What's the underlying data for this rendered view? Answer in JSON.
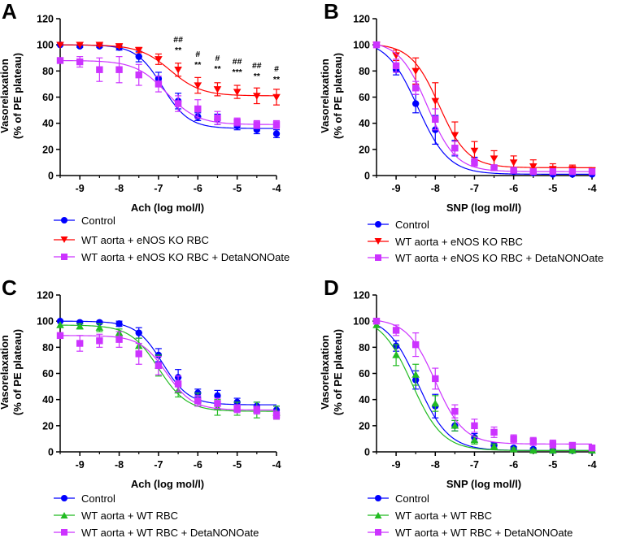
{
  "panels": [
    {
      "letter": "A",
      "xlabel": "Ach (log mol/l)",
      "ylabel": "Vasorelaxation",
      "ylabel2": "(% of PE plateau)",
      "legend": [
        "Control",
        "WT aorta + eNOS KO RBC",
        "WT aorta + eNOS KO RBC + DetaNONOate"
      ]
    },
    {
      "letter": "B",
      "xlabel": "SNP (log mol/l)",
      "ylabel": "Vasorelaxation",
      "ylabel2": "(% of PE plateau)",
      "legend": [
        "Control",
        "WT aorta + eNOS KO RBC",
        "WT aorta + eNOS KO RBC + DetaNONOate"
      ]
    },
    {
      "letter": "C",
      "xlabel": "Ach (log mol/l)",
      "ylabel": "Vasorelaxation",
      "ylabel2": "(% of PE plateau)",
      "legend": [
        "Control",
        "WT aorta + WT RBC",
        "WT aorta + WT RBC + DetaNONOate"
      ]
    },
    {
      "letter": "D",
      "xlabel": "SNP (log mol/l)",
      "ylabel": "Vasorelaxation",
      "ylabel2": "(% of PE plateau)",
      "legend": [
        "Control",
        "WT aorta + WT RBC",
        "WT aorta + WT RBC + DetaNONOate"
      ]
    }
  ],
  "chart_data": [
    {
      "panel": "A",
      "type": "scatter",
      "title": "",
      "xlabel": "Ach (log mol/l)",
      "ylabel": "Vasorelaxation (% of PE plateau)",
      "xlim": [
        -9.5,
        -4
      ],
      "ylim": [
        0,
        120
      ],
      "xticks": [
        -9,
        -8,
        -7,
        -6,
        -5,
        -4
      ],
      "yticks": [
        0,
        20,
        40,
        60,
        80,
        100,
        120
      ],
      "series": [
        {
          "name": "Control",
          "color": "#0000ff",
          "marker": "circle",
          "x": [
            -9.5,
            -9,
            -8.5,
            -8,
            -7.5,
            -7,
            -6.5,
            -6,
            -5.5,
            -5,
            -4.5,
            -4
          ],
          "y": [
            100,
            99,
            99,
            98,
            91,
            74,
            57,
            45,
            43,
            38,
            35,
            32
          ],
          "err": [
            0,
            1,
            1,
            2,
            4,
            5,
            6,
            3,
            4,
            3,
            3,
            3
          ],
          "fit": {
            "bottom": 36,
            "top": 100,
            "ec50": -6.9,
            "hill": 1.3
          }
        },
        {
          "name": "WT aorta + eNOS KO RBC",
          "color": "#ff0000",
          "marker": "triangle-down",
          "x": [
            -9.5,
            -9,
            -8.5,
            -8,
            -7.5,
            -7,
            -6.5,
            -6,
            -5.5,
            -5,
            -4.5,
            -4
          ],
          "y": [
            100,
            100,
            100,
            99,
            96,
            89,
            81,
            69,
            66,
            64,
            61,
            60
          ],
          "err": [
            0,
            0,
            1,
            1,
            2,
            4,
            5,
            6,
            5,
            5,
            6,
            6
          ],
          "fit": {
            "bottom": 61,
            "top": 100,
            "ec50": -6.7,
            "hill": 1.1
          }
        },
        {
          "name": "WT aorta + eNOS KO RBC + DetaNONOate",
          "color": "#cc33ff",
          "marker": "square",
          "x": [
            -9.5,
            -9,
            -8.5,
            -8,
            -7.5,
            -7,
            -6.5,
            -6,
            -5.5,
            -5,
            -4.5,
            -4
          ],
          "y": [
            88,
            87,
            81,
            81,
            77,
            70,
            55,
            51,
            44,
            41,
            39,
            39
          ],
          "err": [
            0,
            4,
            9,
            10,
            8,
            6,
            6,
            7,
            5,
            3,
            3,
            3
          ],
          "fit": {
            "bottom": 39,
            "top": 88,
            "ec50": -6.8,
            "hill": 1.1
          }
        }
      ],
      "annotations": [
        {
          "x": -6.5,
          "lines": [
            "##",
            "**"
          ]
        },
        {
          "x": -6,
          "lines": [
            "#",
            "**"
          ]
        },
        {
          "x": -5.5,
          "lines": [
            "#",
            "**"
          ]
        },
        {
          "x": -5,
          "lines": [
            "##",
            "***"
          ]
        },
        {
          "x": -4.5,
          "lines": [
            "##",
            "**"
          ]
        },
        {
          "x": -4,
          "lines": [
            "#",
            "**"
          ]
        }
      ]
    },
    {
      "panel": "B",
      "type": "scatter",
      "title": "",
      "xlabel": "SNP (log mol/l)",
      "ylabel": "Vasorelaxation (% of PE plateau)",
      "xlim": [
        -9.5,
        -4
      ],
      "ylim": [
        0,
        120
      ],
      "xticks": [
        -9,
        -8,
        -7,
        -6,
        -5,
        -4
      ],
      "yticks": [
        0,
        20,
        40,
        60,
        80,
        100,
        120
      ],
      "series": [
        {
          "name": "Control",
          "color": "#0000ff",
          "marker": "circle",
          "x": [
            -9.5,
            -9,
            -8.5,
            -8,
            -7.5,
            -7,
            -6.5,
            -6,
            -5.5,
            -5,
            -4.5,
            -4
          ],
          "y": [
            100,
            81,
            55,
            35,
            21,
            11,
            6,
            3,
            2,
            1,
            1,
            1
          ],
          "err": [
            0,
            4,
            7,
            11,
            6,
            3,
            2,
            1,
            1,
            1,
            1,
            1
          ],
          "fit": {
            "bottom": 1,
            "top": 104,
            "ec50": -8.45,
            "hill": 1.1
          }
        },
        {
          "name": "WT aorta + eNOS KO RBC",
          "color": "#ff0000",
          "marker": "triangle-down",
          "x": [
            -9.5,
            -9,
            -8.5,
            -8,
            -7.5,
            -7,
            -6.5,
            -6,
            -5.5,
            -5,
            -4.5,
            -4
          ],
          "y": [
            100,
            92,
            80,
            57,
            31,
            19,
            13,
            10,
            7,
            5,
            5,
            4
          ],
          "err": [
            0,
            4,
            10,
            14,
            10,
            7,
            6,
            5,
            5,
            4,
            3,
            2
          ],
          "fit": {
            "bottom": 6,
            "top": 101,
            "ec50": -7.9,
            "hill": 1.2
          }
        },
        {
          "name": "WT aorta + eNOS KO RBC + DetaNONOate",
          "color": "#cc33ff",
          "marker": "square",
          "x": [
            -9.5,
            -9,
            -8.5,
            -8,
            -7.5,
            -7,
            -6.5,
            -6,
            -5.5,
            -5,
            -4.5,
            -4
          ],
          "y": [
            100,
            84,
            67,
            43,
            21,
            10,
            6,
            4,
            3,
            3,
            3,
            3
          ],
          "err": [
            0,
            5,
            5,
            8,
            5,
            3,
            2,
            2,
            1,
            1,
            1,
            1
          ],
          "fit": {
            "bottom": 3,
            "top": 103,
            "ec50": -8.2,
            "hill": 1.2
          }
        }
      ]
    },
    {
      "panel": "C",
      "type": "scatter",
      "title": "",
      "xlabel": "Ach (log mol/l)",
      "ylabel": "Vasorelaxation (% of PE plateau)",
      "xlim": [
        -9.5,
        -4
      ],
      "ylim": [
        0,
        120
      ],
      "xticks": [
        -9,
        -8,
        -7,
        -6,
        -5,
        -4
      ],
      "yticks": [
        0,
        20,
        40,
        60,
        80,
        100,
        120
      ],
      "series": [
        {
          "name": "Control",
          "color": "#0000ff",
          "marker": "circle",
          "x": [
            -9.5,
            -9,
            -8.5,
            -8,
            -7.5,
            -7,
            -6.5,
            -6,
            -5.5,
            -5,
            -4.5,
            -4
          ],
          "y": [
            100,
            99,
            99,
            98,
            91,
            74,
            57,
            45,
            43,
            38,
            35,
            32
          ],
          "err": [
            0,
            1,
            1,
            2,
            4,
            5,
            6,
            3,
            4,
            3,
            3,
            3
          ],
          "fit": {
            "bottom": 36,
            "top": 100,
            "ec50": -6.9,
            "hill": 1.3
          }
        },
        {
          "name": "WT aorta + WT RBC",
          "color": "#22bb22",
          "marker": "triangle-up",
          "x": [
            -9.5,
            -9,
            -8.5,
            -8,
            -7.5,
            -7,
            -6.5,
            -6,
            -5.5,
            -5,
            -4.5,
            -4
          ],
          "y": [
            97,
            96,
            95,
            91,
            81,
            66,
            47,
            40,
            34,
            33,
            32,
            30
          ],
          "err": [
            0,
            2,
            3,
            3,
            6,
            8,
            5,
            5,
            6,
            5,
            6,
            5
          ],
          "fit": {
            "bottom": 31,
            "top": 97,
            "ec50": -7.0,
            "hill": 1.2
          }
        },
        {
          "name": "WT aorta + WT RBC + DetaNONOate",
          "color": "#cc33ff",
          "marker": "square",
          "x": [
            -9.5,
            -9,
            -8.5,
            -8,
            -7.5,
            -7,
            -6.5,
            -6,
            -5.5,
            -5,
            -4.5,
            -4
          ],
          "y": [
            89,
            83,
            85,
            86,
            75,
            66,
            52,
            39,
            37,
            33,
            32,
            28
          ],
          "err": [
            0,
            6,
            5,
            6,
            8,
            7,
            6,
            4,
            4,
            3,
            3,
            3
          ],
          "fit": {
            "bottom": 32,
            "top": 89,
            "ec50": -6.8,
            "hill": 1.3
          }
        }
      ]
    },
    {
      "panel": "D",
      "type": "scatter",
      "title": "",
      "xlabel": "SNP (log mol/l)",
      "ylabel": "Vasorelaxation (% of PE plateau)",
      "xlim": [
        -9.5,
        -4
      ],
      "ylim": [
        0,
        120
      ],
      "xticks": [
        -9,
        -8,
        -7,
        -6,
        -5,
        -4
      ],
      "yticks": [
        0,
        20,
        40,
        60,
        80,
        100,
        120
      ],
      "series": [
        {
          "name": "Control",
          "color": "#0000ff",
          "marker": "circle",
          "x": [
            -9.5,
            -9,
            -8.5,
            -8,
            -7.5,
            -7,
            -6.5,
            -6,
            -5.5,
            -5,
            -4.5,
            -4
          ],
          "y": [
            100,
            81,
            55,
            35,
            20,
            11,
            5,
            3,
            2,
            1,
            1,
            1
          ],
          "err": [
            0,
            4,
            7,
            9,
            4,
            3,
            2,
            1,
            1,
            1,
            1,
            1
          ],
          "fit": {
            "bottom": 1,
            "top": 104,
            "ec50": -8.45,
            "hill": 1.1
          }
        },
        {
          "name": "WT aorta + WT RBC",
          "color": "#22bb22",
          "marker": "triangle-up",
          "x": [
            -9.5,
            -9,
            -8.5,
            -8,
            -7.5,
            -7,
            -6.5,
            -6,
            -5.5,
            -5,
            -4.5,
            -4
          ],
          "y": [
            97,
            74,
            59,
            37,
            20,
            9,
            4,
            2,
            1,
            1,
            1,
            1
          ],
          "err": [
            0,
            8,
            8,
            6,
            4,
            3,
            2,
            1,
            1,
            1,
            1,
            1
          ],
          "fit": {
            "bottom": 1,
            "top": 104,
            "ec50": -8.6,
            "hill": 1.1
          }
        },
        {
          "name": "WT aorta + WT RBC + DetaNONOate",
          "color": "#cc33ff",
          "marker": "square",
          "x": [
            -9.5,
            -9,
            -8.5,
            -8,
            -7.5,
            -7,
            -6.5,
            -6,
            -5.5,
            -5,
            -4.5,
            -4
          ],
          "y": [
            100,
            93,
            82,
            56,
            31,
            20,
            15,
            10,
            8,
            6,
            5,
            3
          ],
          "err": [
            0,
            4,
            9,
            8,
            5,
            5,
            4,
            3,
            3,
            3,
            2,
            2
          ],
          "fit": {
            "bottom": 6,
            "top": 102,
            "ec50": -8.0,
            "hill": 1.2
          }
        }
      ]
    }
  ]
}
